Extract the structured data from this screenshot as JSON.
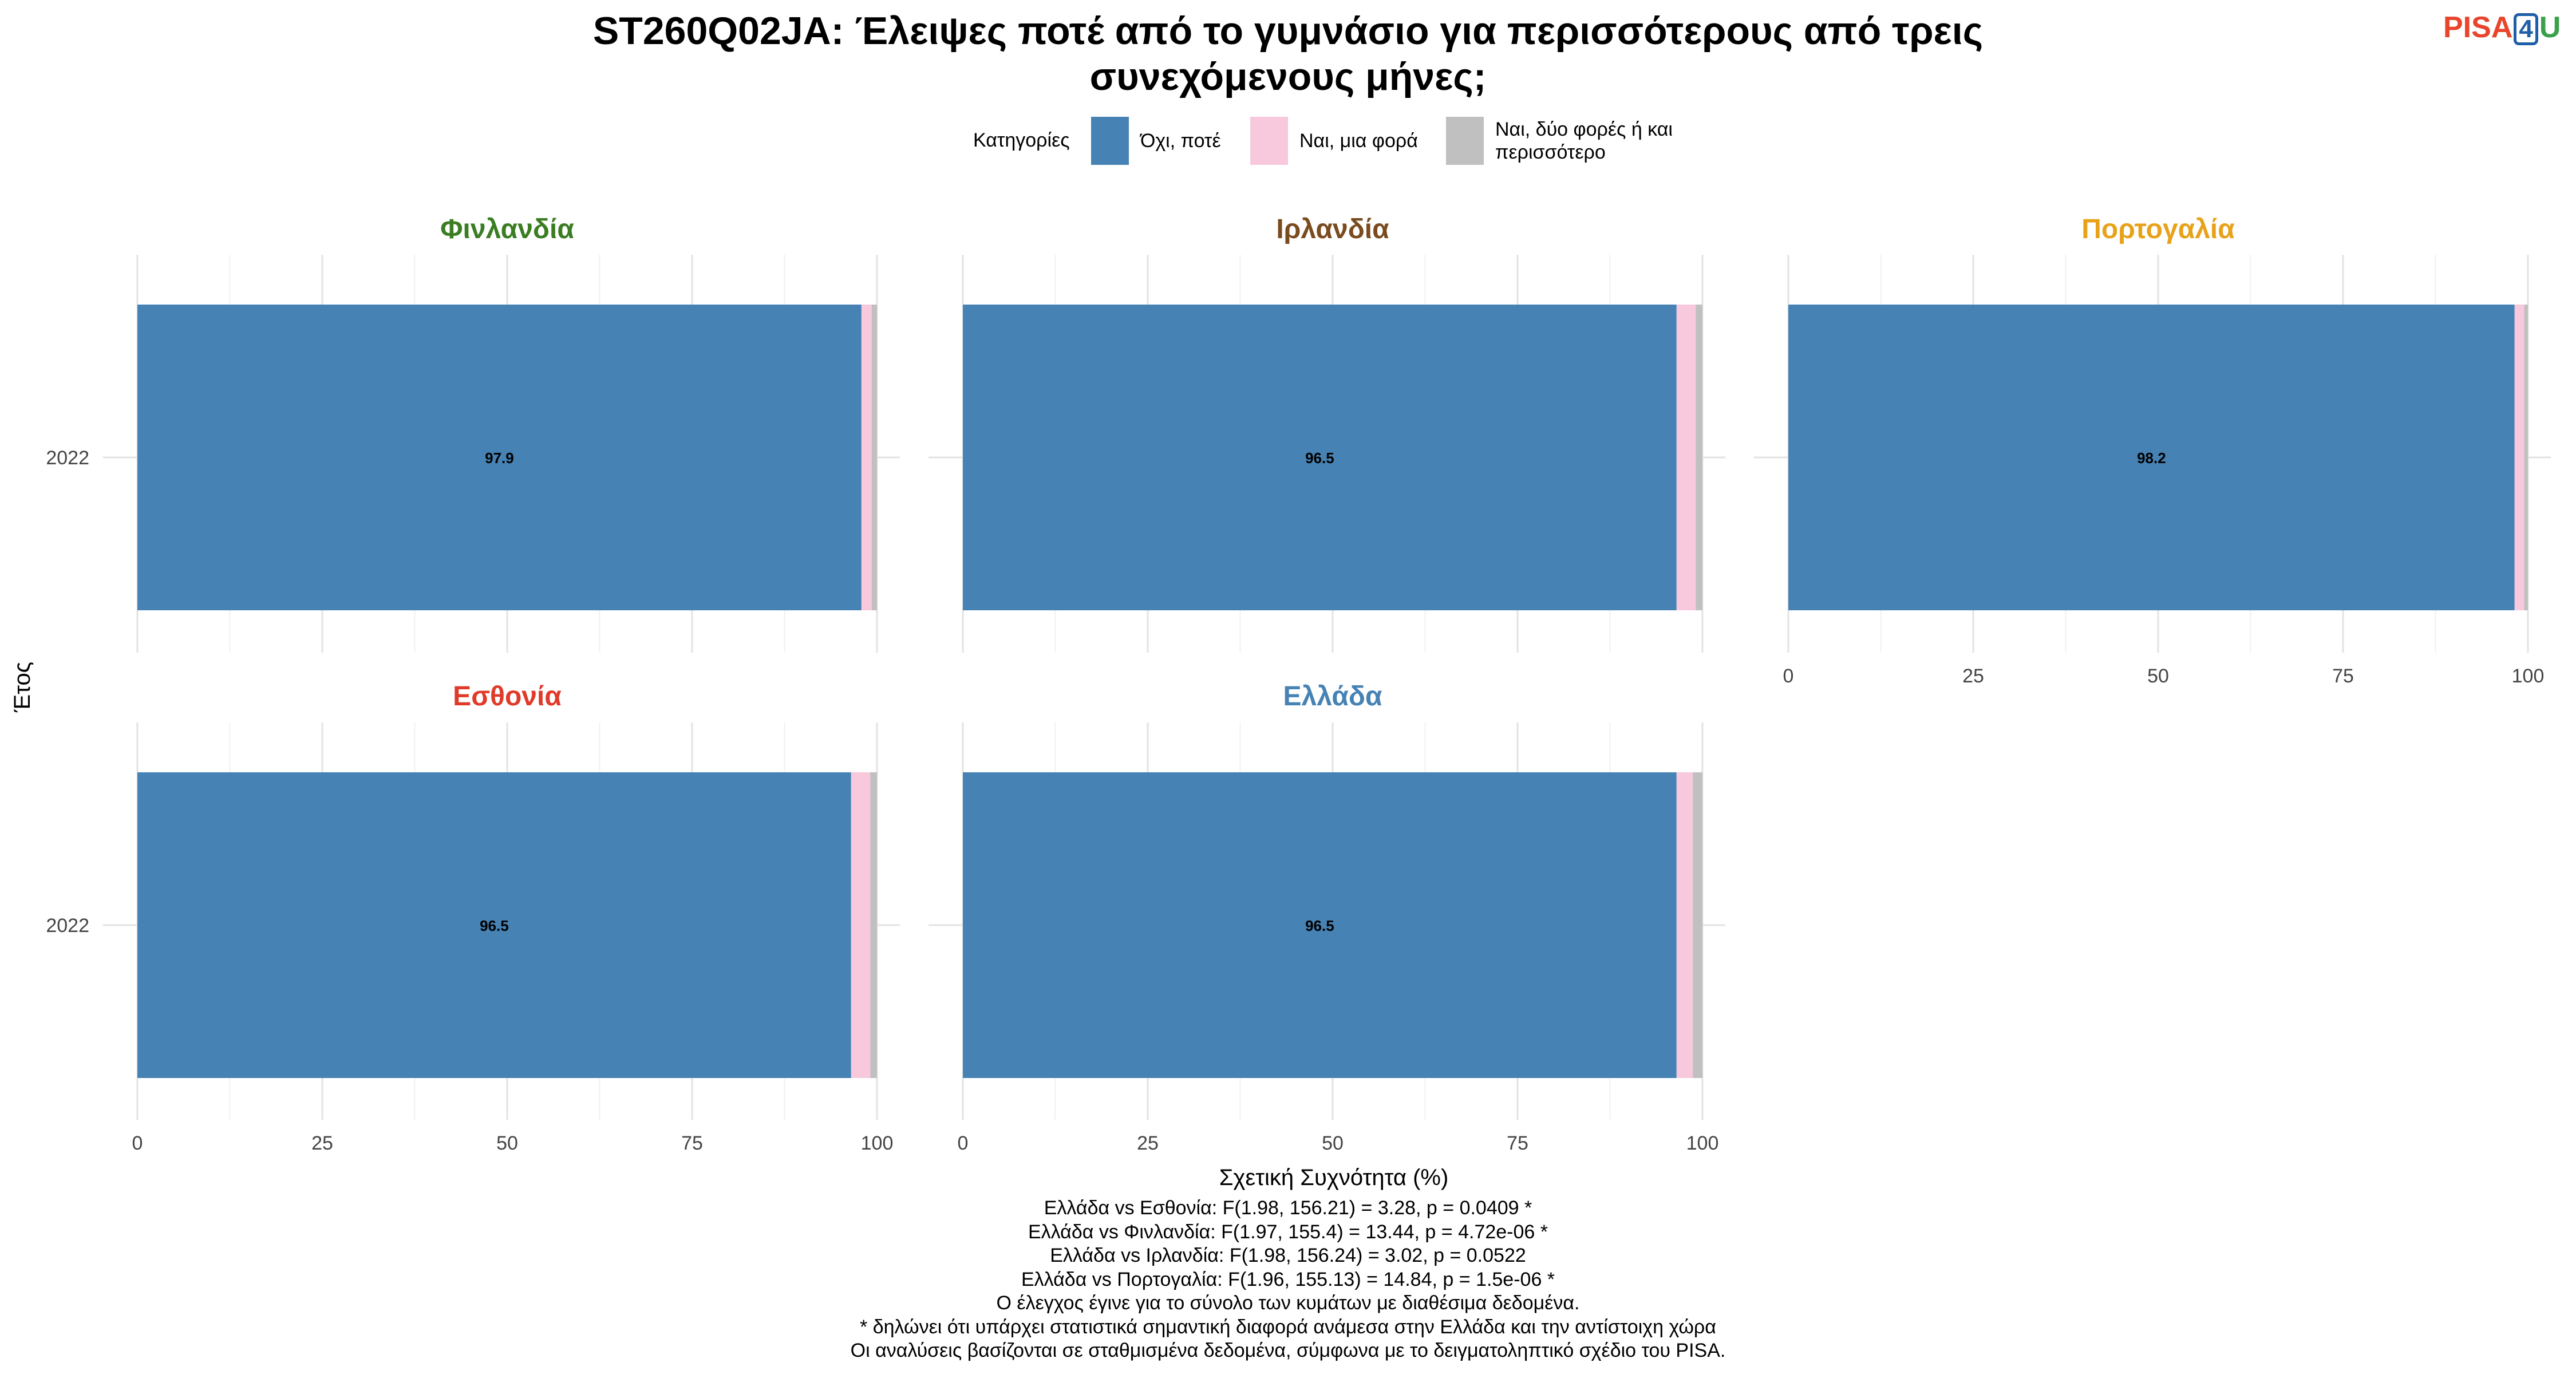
{
  "title": {
    "line1": "ST260Q02JA: Έλειψες ποτέ από το γυμνάσιο για περισσότερους από τρεις",
    "line2": "συνεχόμενους μήνες;"
  },
  "logo": {
    "part1": "PISA",
    "part2": "4",
    "part3": "U",
    "colors": [
      "#e8452c",
      "#1f5fa8",
      "#3aa14a"
    ]
  },
  "legend": {
    "title": "Κατηγορίες",
    "items": [
      {
        "label": "Όχι, ποτέ",
        "color": "#4682B4"
      },
      {
        "label": "Ναι, μια φορά",
        "color": "#F8C8DC"
      },
      {
        "label_line1": "Ναι, δύο φορές ή και",
        "label_line2": "περισσότερο",
        "color": "#C0C0C0"
      }
    ]
  },
  "chart_data": {
    "type": "bar",
    "orientation": "horizontal",
    "stacked": true,
    "xlabel": "Σχετική Συχνότητα (%)",
    "ylabel": "Έτος",
    "xlim": [
      0,
      100
    ],
    "xticks": [
      "0",
      "25",
      "50",
      "75",
      "100"
    ],
    "categories": [
      "2022"
    ],
    "series_names": [
      "Όχι, ποτέ",
      "Ναι, μια φορά",
      "Ναι, δύο φορές ή και περισσότερο"
    ],
    "colors": [
      "#4682B4",
      "#F8C8DC",
      "#C0C0C0"
    ],
    "facets": [
      {
        "name": "Φινλανδία",
        "title_color": "#3a7d22",
        "year": "2022",
        "values": [
          97.9,
          1.4,
          0.7
        ],
        "label": "97.9"
      },
      {
        "name": "Ιρλανδία",
        "title_color": "#7a4b1e",
        "year": "2022",
        "values": [
          96.5,
          2.6,
          0.9
        ],
        "label": "96.5"
      },
      {
        "name": "Πορτογαλία",
        "title_color": "#e8a21a",
        "year": "2022",
        "values": [
          98.2,
          1.3,
          0.5
        ],
        "label": "98.2"
      },
      {
        "name": "Εσθονία",
        "title_color": "#e03a2a",
        "year": "2022",
        "values": [
          96.5,
          2.6,
          0.9
        ],
        "label": "96.5"
      },
      {
        "name": "Ελλάδα",
        "title_color": "#4682B4",
        "year": "2022",
        "values": [
          96.5,
          2.2,
          1.3
        ],
        "label": "96.5"
      }
    ]
  },
  "footer": {
    "lines": [
      "Ελλάδα vs Εσθονία: F(1.98, 156.21) = 3.28, p = 0.0409 *",
      "Ελλάδα vs Φινλανδία: F(1.97, 155.4) = 13.44, p = 4.72e-06 *",
      "Ελλάδα vs Ιρλανδία: F(1.98, 156.24) = 3.02, p = 0.0522",
      "Ελλάδα vs Πορτογαλία: F(1.96, 155.13) = 14.84, p = 1.5e-06 *",
      "Ο έλεγχος έγινε για το σύνολο των κυμάτων με διαθέσιμα δεδομένα.",
      "* δηλώνει ότι υπάρχει στατιστικά σημαντική διαφορά ανάμεσα στην Ελλάδα και την αντίστοιχη χώρα",
      "Οι αναλύσεις βασίζονται σε σταθμισμένα δεδομένα, σύμφωνα με το δειγματοληπτικό σχέδιο του PISA."
    ]
  }
}
